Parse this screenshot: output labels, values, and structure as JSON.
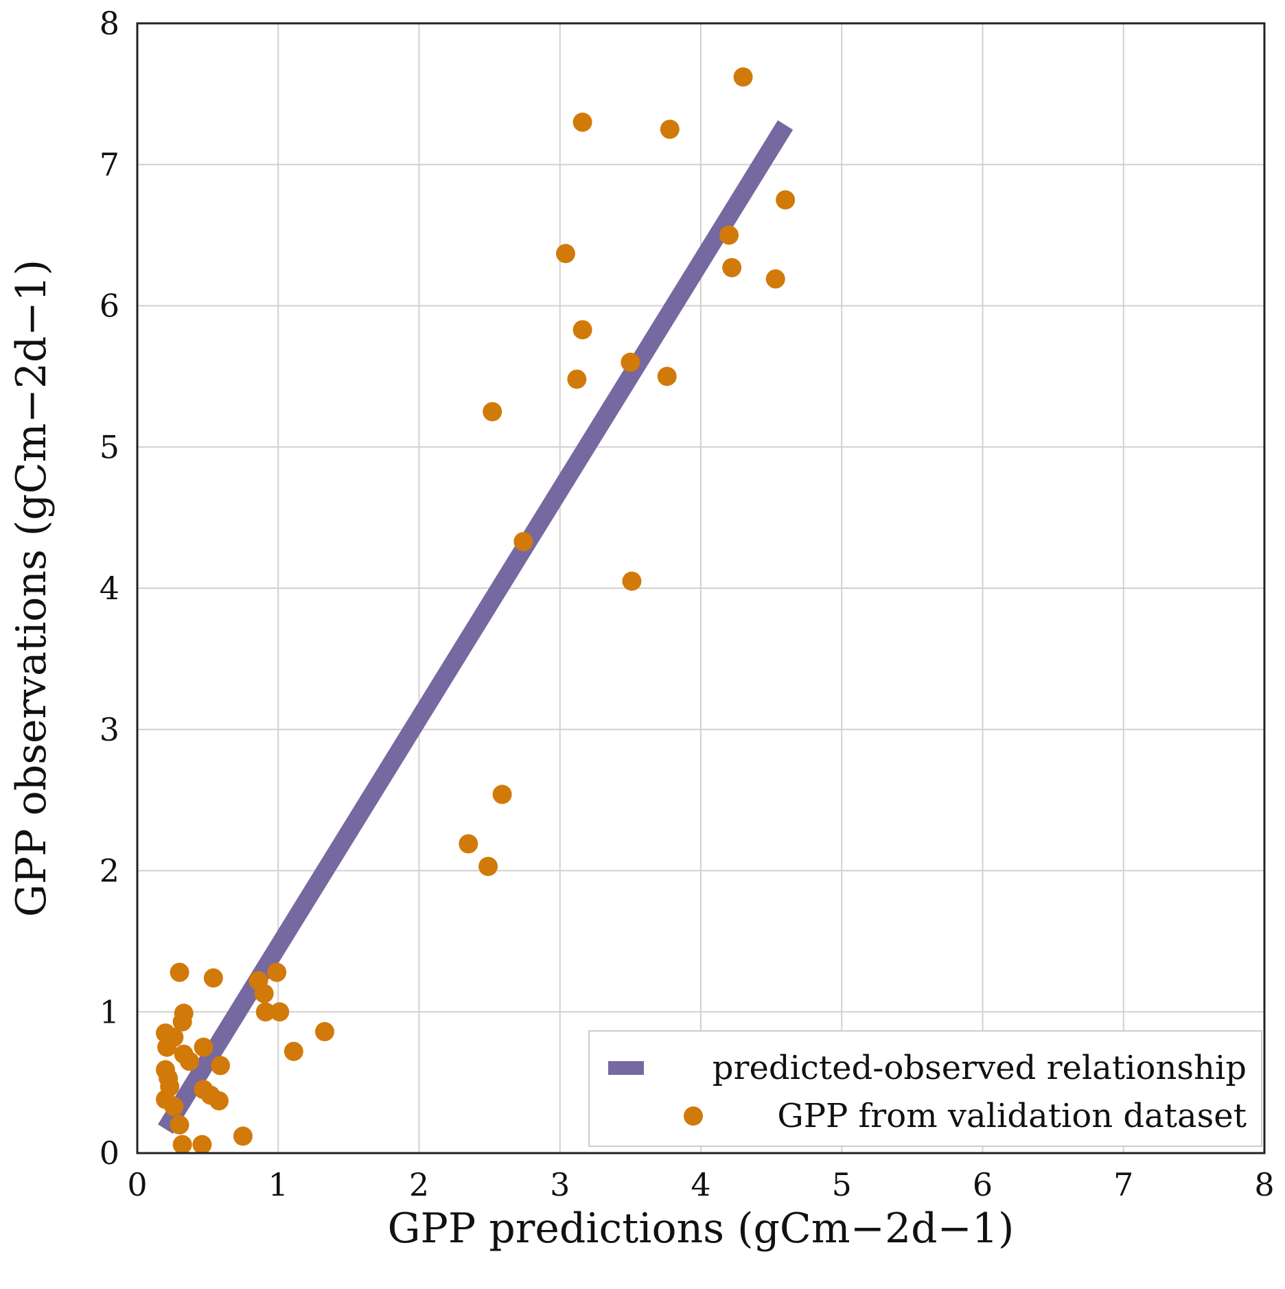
{
  "chart_data": {
    "type": "scatter",
    "title": "",
    "xlabel": "GPP predictions (gCm−2d−1)",
    "ylabel": "GPP observations (gCm−2d−1)",
    "xlim": [
      0,
      8
    ],
    "ylim": [
      0,
      8
    ],
    "x_ticks": [
      "0",
      "1",
      "2",
      "3",
      "4",
      "5",
      "6",
      "7",
      "8"
    ],
    "y_ticks": [
      "0",
      "1",
      "2",
      "3",
      "4",
      "5",
      "6",
      "7",
      "8"
    ],
    "grid": true,
    "legend_position": "bottom-right",
    "legend": [
      {
        "label": "predicted-observed relationship",
        "kind": "line"
      },
      {
        "label": "GPP from validation dataset",
        "kind": "marker"
      }
    ],
    "colors": {
      "line": "#7668a0",
      "points": "#d17a0a"
    },
    "series": [
      {
        "name": "predicted-observed relationship",
        "kind": "line",
        "points": [
          {
            "x": 0.2,
            "y": 0.17
          },
          {
            "x": 4.6,
            "y": 7.28
          }
        ]
      },
      {
        "name": "GPP from validation dataset",
        "kind": "scatter",
        "points": [
          {
            "x": 4.3,
            "y": 7.62
          },
          {
            "x": 3.16,
            "y": 7.3
          },
          {
            "x": 3.78,
            "y": 7.25
          },
          {
            "x": 4.6,
            "y": 6.75
          },
          {
            "x": 4.2,
            "y": 6.5
          },
          {
            "x": 3.04,
            "y": 6.37
          },
          {
            "x": 4.22,
            "y": 6.27
          },
          {
            "x": 4.53,
            "y": 6.19
          },
          {
            "x": 3.16,
            "y": 5.83
          },
          {
            "x": 3.5,
            "y": 5.6
          },
          {
            "x": 3.12,
            "y": 5.48
          },
          {
            "x": 3.76,
            "y": 5.5
          },
          {
            "x": 2.52,
            "y": 5.25
          },
          {
            "x": 2.74,
            "y": 4.33
          },
          {
            "x": 3.51,
            "y": 4.05
          },
          {
            "x": 2.59,
            "y": 2.54
          },
          {
            "x": 2.35,
            "y": 2.19
          },
          {
            "x": 2.49,
            "y": 2.03
          },
          {
            "x": 0.3,
            "y": 1.28
          },
          {
            "x": 0.54,
            "y": 1.24
          },
          {
            "x": 0.86,
            "y": 1.22
          },
          {
            "x": 0.99,
            "y": 1.28
          },
          {
            "x": 0.9,
            "y": 1.13
          },
          {
            "x": 0.91,
            "y": 1.0
          },
          {
            "x": 1.01,
            "y": 1.0
          },
          {
            "x": 0.33,
            "y": 0.99
          },
          {
            "x": 0.32,
            "y": 0.93
          },
          {
            "x": 0.2,
            "y": 0.85
          },
          {
            "x": 0.21,
            "y": 0.75
          },
          {
            "x": 0.26,
            "y": 0.82
          },
          {
            "x": 0.47,
            "y": 0.75
          },
          {
            "x": 0.33,
            "y": 0.7
          },
          {
            "x": 0.37,
            "y": 0.65
          },
          {
            "x": 0.59,
            "y": 0.62
          },
          {
            "x": 1.11,
            "y": 0.72
          },
          {
            "x": 1.33,
            "y": 0.86
          },
          {
            "x": 0.2,
            "y": 0.59
          },
          {
            "x": 0.22,
            "y": 0.53
          },
          {
            "x": 0.23,
            "y": 0.47
          },
          {
            "x": 0.47,
            "y": 0.45
          },
          {
            "x": 0.52,
            "y": 0.41
          },
          {
            "x": 0.58,
            "y": 0.37
          },
          {
            "x": 0.2,
            "y": 0.38
          },
          {
            "x": 0.26,
            "y": 0.33
          },
          {
            "x": 0.3,
            "y": 0.2
          },
          {
            "x": 0.32,
            "y": 0.06
          },
          {
            "x": 0.46,
            "y": 0.06
          },
          {
            "x": 0.75,
            "y": 0.12
          }
        ]
      }
    ]
  }
}
